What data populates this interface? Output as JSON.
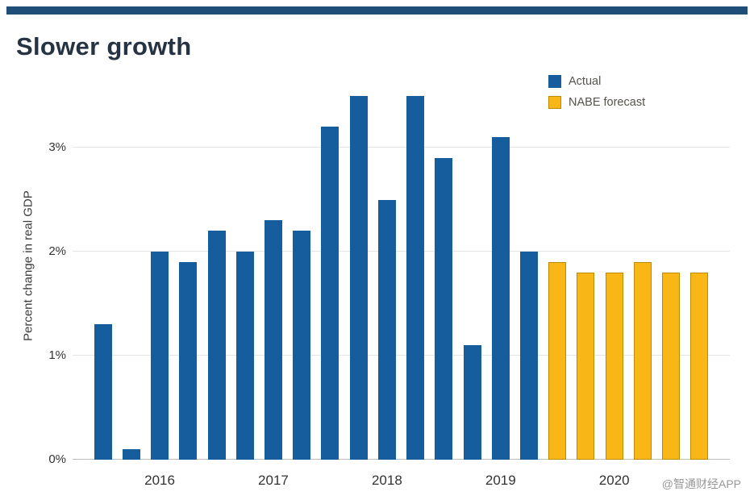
{
  "page": {
    "accent_color": "#1f4e79",
    "watermark": "@智通财经APP"
  },
  "chart_data": {
    "type": "bar",
    "title": "Slower growth",
    "xlabel": "",
    "ylabel": "Percent change in real GDP",
    "ylim": [
      0,
      3.7
    ],
    "grid": true,
    "legend_position": "top-right",
    "y_ticks": [
      {
        "value": 0,
        "label": "0%"
      },
      {
        "value": 1,
        "label": "1%"
      },
      {
        "value": 2,
        "label": "2%"
      },
      {
        "value": 3,
        "label": "3%"
      }
    ],
    "x_ticks": [
      {
        "label": "2016",
        "bar_index": 2
      },
      {
        "label": "2017",
        "bar_index": 6
      },
      {
        "label": "2018",
        "bar_index": 10
      },
      {
        "label": "2019",
        "bar_index": 14
      },
      {
        "label": "2020",
        "bar_index": 18
      }
    ],
    "series": [
      {
        "name": "Actual",
        "color": "#155d9c",
        "border_color": "#155d9c",
        "values": [
          1.3,
          0.1,
          2.0,
          1.9,
          2.2,
          2.0,
          2.3,
          2.2,
          3.2,
          3.5,
          2.5,
          3.5,
          2.9,
          1.1,
          3.1,
          2.0
        ]
      },
      {
        "name": "NABE forecast",
        "color": "#f9b717",
        "border_color": "#bd8b00",
        "values": [
          1.9,
          1.8,
          1.8,
          1.9,
          1.8,
          1.8
        ]
      }
    ]
  }
}
